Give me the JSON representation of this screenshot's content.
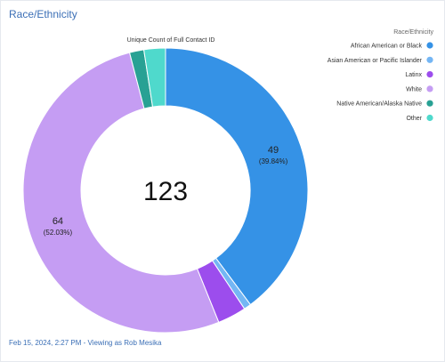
{
  "widget": {
    "title": "Race/Ethnicity",
    "footer": "Feb 15, 2024, 2:27 PM - Viewing as Rob Mesika"
  },
  "chart_data": {
    "type": "pie",
    "donut": true,
    "measure": "Unique Count of Full Contact ID",
    "center_total": "123",
    "legend_title": "Race/Ethnicity",
    "legend_position": "right",
    "slices": [
      {
        "label": "African American or Black",
        "value": 49,
        "percent": "39.84%",
        "color": "#3592e6",
        "data_label": true
      },
      {
        "label": "Asian American or Pacific Islander",
        "value": 1,
        "percent": "0.81%",
        "color": "#74b6f4",
        "data_label": false
      },
      {
        "label": "Latinx",
        "value": 4,
        "percent": "3.25%",
        "color": "#9c4ded",
        "data_label": false
      },
      {
        "label": "White",
        "value": 64,
        "percent": "52.03%",
        "color": "#c59df3",
        "data_label": true
      },
      {
        "label": "Native American/Alaska Native",
        "value": 2,
        "percent": "1.63%",
        "color": "#28a194",
        "data_label": false
      },
      {
        "label": "Other",
        "value": 3,
        "percent": "2.44%",
        "color": "#4fd9cc",
        "data_label": false
      }
    ]
  }
}
